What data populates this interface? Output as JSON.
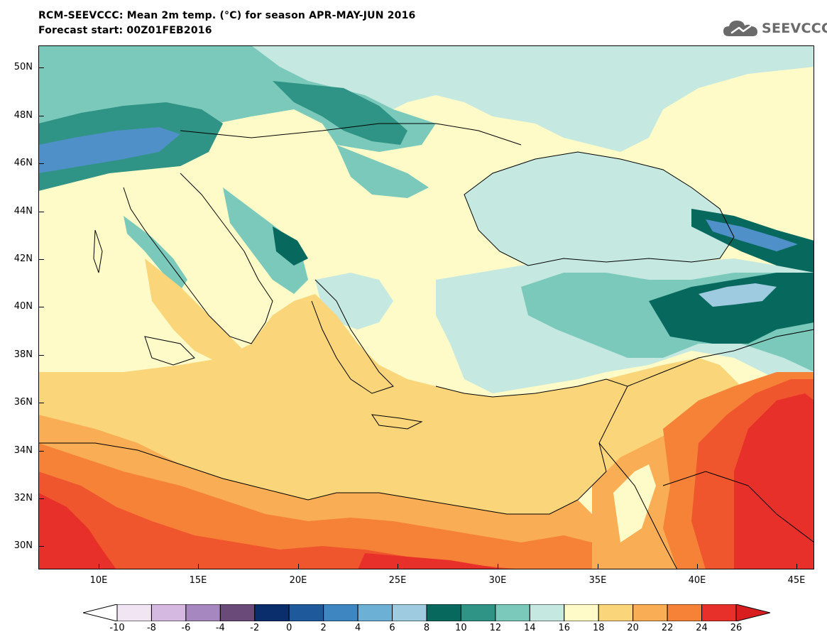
{
  "title": {
    "line1": "RCM-SEEVCCC: Mean 2m temp. (°C) for season APR-MAY-JUN 2016",
    "line2": "Forecast start: 00Z01FEB2016"
  },
  "logo": {
    "text": "SEEVCCC",
    "icon": "cloud-icon",
    "color": "#6a6a6a"
  },
  "map": {
    "lat_labels": [
      "50N",
      "48N",
      "46N",
      "44N",
      "42N",
      "40N",
      "38N",
      "36N",
      "34N",
      "32N",
      "30N"
    ],
    "lon_labels": [
      "10E",
      "15E",
      "20E",
      "25E",
      "30E",
      "35E",
      "40E",
      "45E"
    ],
    "regions": [
      {
        "name": "sahara-hot-core",
        "color": "#e8302a"
      },
      {
        "name": "north-africa-warm",
        "color": "#f0562d"
      },
      {
        "name": "mediterranean-sea",
        "color": "#fbd57a"
      },
      {
        "name": "italy-balkans-mild",
        "color": "#fffbc8"
      },
      {
        "name": "black-sea",
        "color": "#c5e8e1"
      },
      {
        "name": "anatolia-cool",
        "color": "#c5e8e1"
      },
      {
        "name": "caucasus-cold",
        "color": "#07685e"
      },
      {
        "name": "alps-cold",
        "color": "#4f90c8"
      },
      {
        "name": "middle-east-hot",
        "color": "#e8302a"
      }
    ]
  },
  "colorbar": {
    "labels": [
      "-10",
      "-8",
      "-6",
      "-4",
      "-2",
      "0",
      "2",
      "4",
      "6",
      "8",
      "10",
      "12",
      "14",
      "16",
      "18",
      "20",
      "22",
      "24",
      "26"
    ],
    "colors": [
      "#ffffff",
      "#f1e4f3",
      "#d6b9e0",
      "#a687c0",
      "#6a4a78",
      "#0a2d6b",
      "#1e5a9b",
      "#3d86c2",
      "#6cb0d6",
      "#9fcbe0",
      "#07685e",
      "#2f9485",
      "#7bc9bb",
      "#c5e8e1",
      "#fffbc8",
      "#fbd57a",
      "#f9ad55",
      "#f68238",
      "#e8302a",
      "#d81e1e"
    ]
  },
  "colors": {
    "c_sea_warm": "#fbd57a",
    "c_pale_yellow": "#fffbc8",
    "c_pale_teal": "#c5e8e1",
    "c_teal_mid": "#7bc9bb",
    "c_teal": "#2f9485",
    "c_teal_dark": "#07685e",
    "c_blue_light": "#9fcbe0",
    "c_blue": "#4f90c8",
    "c_orange_light": "#f9ad55",
    "c_orange": "#f68238",
    "c_red_orange": "#f0562d",
    "c_red": "#e8302a"
  }
}
